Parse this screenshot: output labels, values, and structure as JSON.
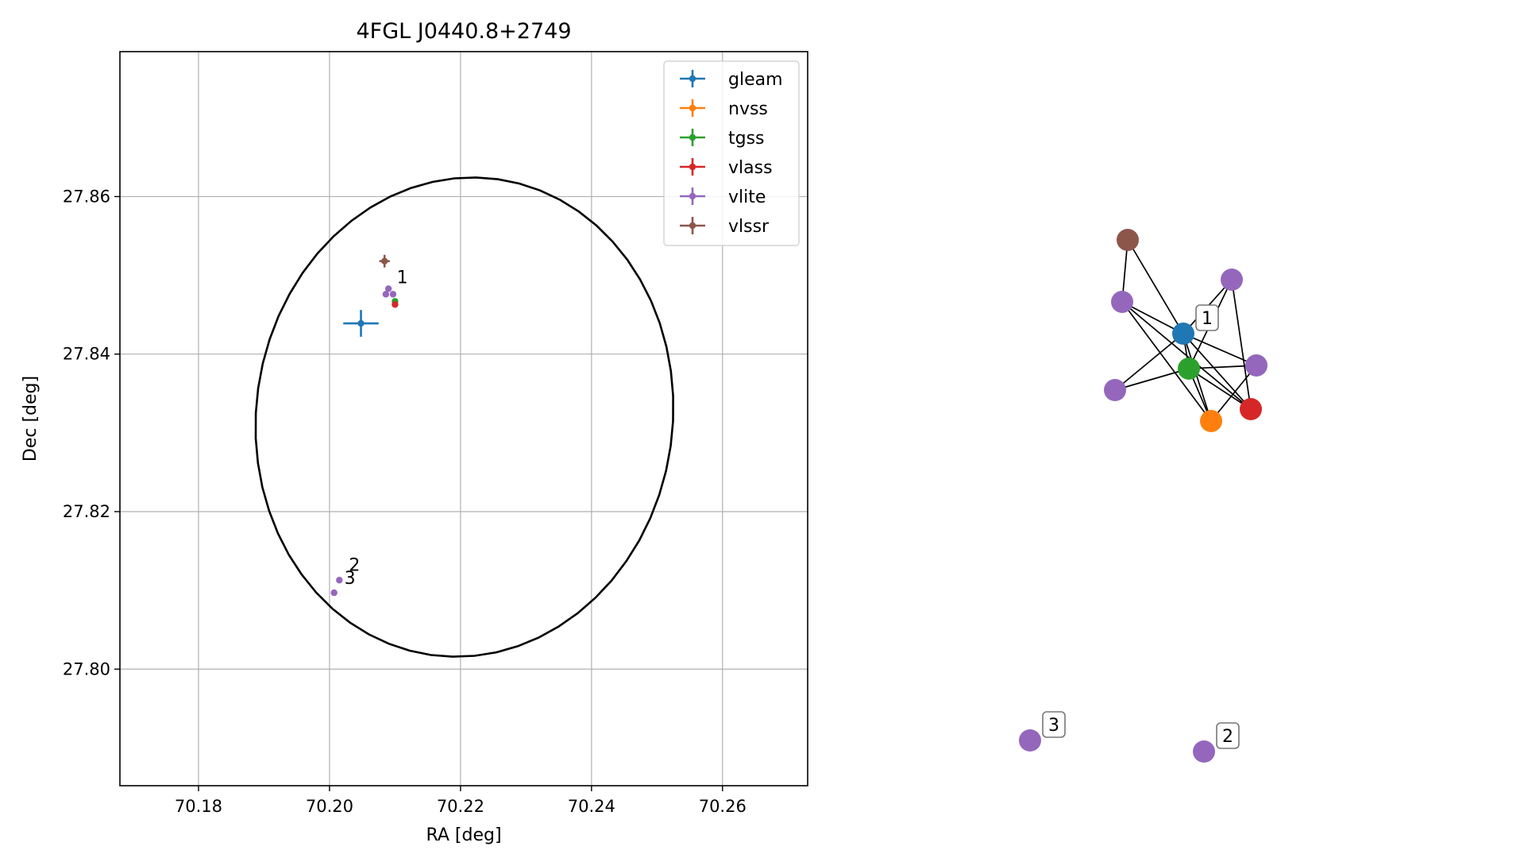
{
  "chart_data": [
    {
      "type": "scatter",
      "title": "4FGL J0440.8+2749",
      "xlabel": "RA [deg]",
      "ylabel": "Dec [deg]",
      "xlim": [
        70.168,
        70.273
      ],
      "ylim": [
        27.7852,
        27.8784
      ],
      "x_ticks": [
        70.18,
        70.2,
        70.22,
        70.24,
        70.26
      ],
      "x_tick_labels": [
        "70.18",
        "70.20",
        "70.22",
        "70.24",
        "70.26"
      ],
      "y_ticks": [
        27.8,
        27.82,
        27.84,
        27.86
      ],
      "y_tick_labels": [
        "27.80",
        "27.82",
        "27.84",
        "27.86"
      ],
      "grid": true,
      "legend_position": "upper-right",
      "ellipse": {
        "center_ra": 70.2206,
        "center_dec": 27.832,
        "semi_axis_ra": 0.0318,
        "semi_axis_dec": 0.0305,
        "tilt_deg": 8,
        "color": "#000000"
      },
      "series": [
        {
          "name": "gleam",
          "color": "#1f77b4",
          "points": [
            {
              "x": 70.2048,
              "y": 27.8439,
              "xerr": 0.0027,
              "yerr": 0.0017
            }
          ]
        },
        {
          "name": "nvss",
          "color": "#ff7f0e",
          "points": []
        },
        {
          "name": "tgss",
          "color": "#2ca02c",
          "points": [
            {
              "x": 70.21,
              "y": 27.8467,
              "xerr": 0.0004,
              "yerr": 0.0003
            }
          ]
        },
        {
          "name": "vlass",
          "color": "#d62728",
          "points": [
            {
              "x": 70.21,
              "y": 27.8463,
              "xerr": 0.0002,
              "yerr": 0.0002
            }
          ]
        },
        {
          "name": "vlite",
          "color": "#9467bd",
          "points": [
            {
              "x": 70.209,
              "y": 27.8483,
              "xerr": 0.0003,
              "yerr": 0.0003
            },
            {
              "x": 70.2086,
              "y": 27.8476,
              "xerr": 0.0003,
              "yerr": 0.0003
            },
            {
              "x": 70.2097,
              "y": 27.8476,
              "xerr": 0.0003,
              "yerr": 0.0003
            },
            {
              "x": 70.2015,
              "y": 27.8113,
              "xerr": 0.0003,
              "yerr": 0.0003
            },
            {
              "x": 70.2007,
              "y": 27.8097,
              "xerr": 0.0003,
              "yerr": 0.0003
            }
          ]
        },
        {
          "name": "vlssr",
          "color": "#8c564b",
          "points": [
            {
              "x": 70.2084,
              "y": 27.8518,
              "xerr": 0.0008,
              "yerr": 0.0008
            }
          ]
        }
      ],
      "annotations": [
        {
          "text": "1",
          "x": 70.2099,
          "y": 27.8488
        },
        {
          "text": "2",
          "x": 70.2026,
          "y": 27.8123
        },
        {
          "text": "3",
          "x": 70.2019,
          "y": 27.8106
        }
      ]
    },
    {
      "type": "network",
      "nodes": [
        {
          "id": "gleam",
          "color": "#1f77b4"
        },
        {
          "id": "tgss",
          "color": "#2ca02c"
        },
        {
          "id": "nvss",
          "color": "#ff7f0e"
        },
        {
          "id": "vlass",
          "color": "#d62728"
        },
        {
          "id": "vlssr",
          "color": "#8c564b"
        },
        {
          "id": "vlite_a",
          "color": "#9467bd"
        },
        {
          "id": "vlite_b",
          "color": "#9467bd"
        },
        {
          "id": "vlite_c",
          "color": "#9467bd"
        },
        {
          "id": "vlite_d",
          "color": "#9467bd"
        },
        {
          "id": "vlite_e",
          "color": "#9467bd"
        },
        {
          "id": "vlite_f",
          "color": "#9467bd"
        }
      ],
      "edges": [
        [
          "vlssr",
          "vlite_a"
        ],
        [
          "vlssr",
          "gleam"
        ],
        [
          "vlite_a",
          "gleam"
        ],
        [
          "vlite_a",
          "nvss"
        ],
        [
          "vlite_a",
          "vlass"
        ],
        [
          "gleam",
          "vlite_b"
        ],
        [
          "gleam",
          "vlite_c"
        ],
        [
          "gleam",
          "tgss"
        ],
        [
          "gleam",
          "nvss"
        ],
        [
          "gleam",
          "vlass"
        ],
        [
          "vlite_b",
          "tgss"
        ],
        [
          "vlite_b",
          "vlass"
        ],
        [
          "tgss",
          "vlite_c"
        ],
        [
          "tgss",
          "nvss"
        ],
        [
          "tgss",
          "vlass"
        ],
        [
          "vlite_d",
          "tgss"
        ],
        [
          "vlite_d",
          "gleam"
        ],
        [
          "vlite_c",
          "nvss"
        ]
      ],
      "group_labels": [
        {
          "text": "1",
          "node": "gleam"
        },
        {
          "text": "2",
          "node": "vlite_e"
        },
        {
          "text": "3",
          "node": "vlite_f"
        }
      ]
    }
  ]
}
